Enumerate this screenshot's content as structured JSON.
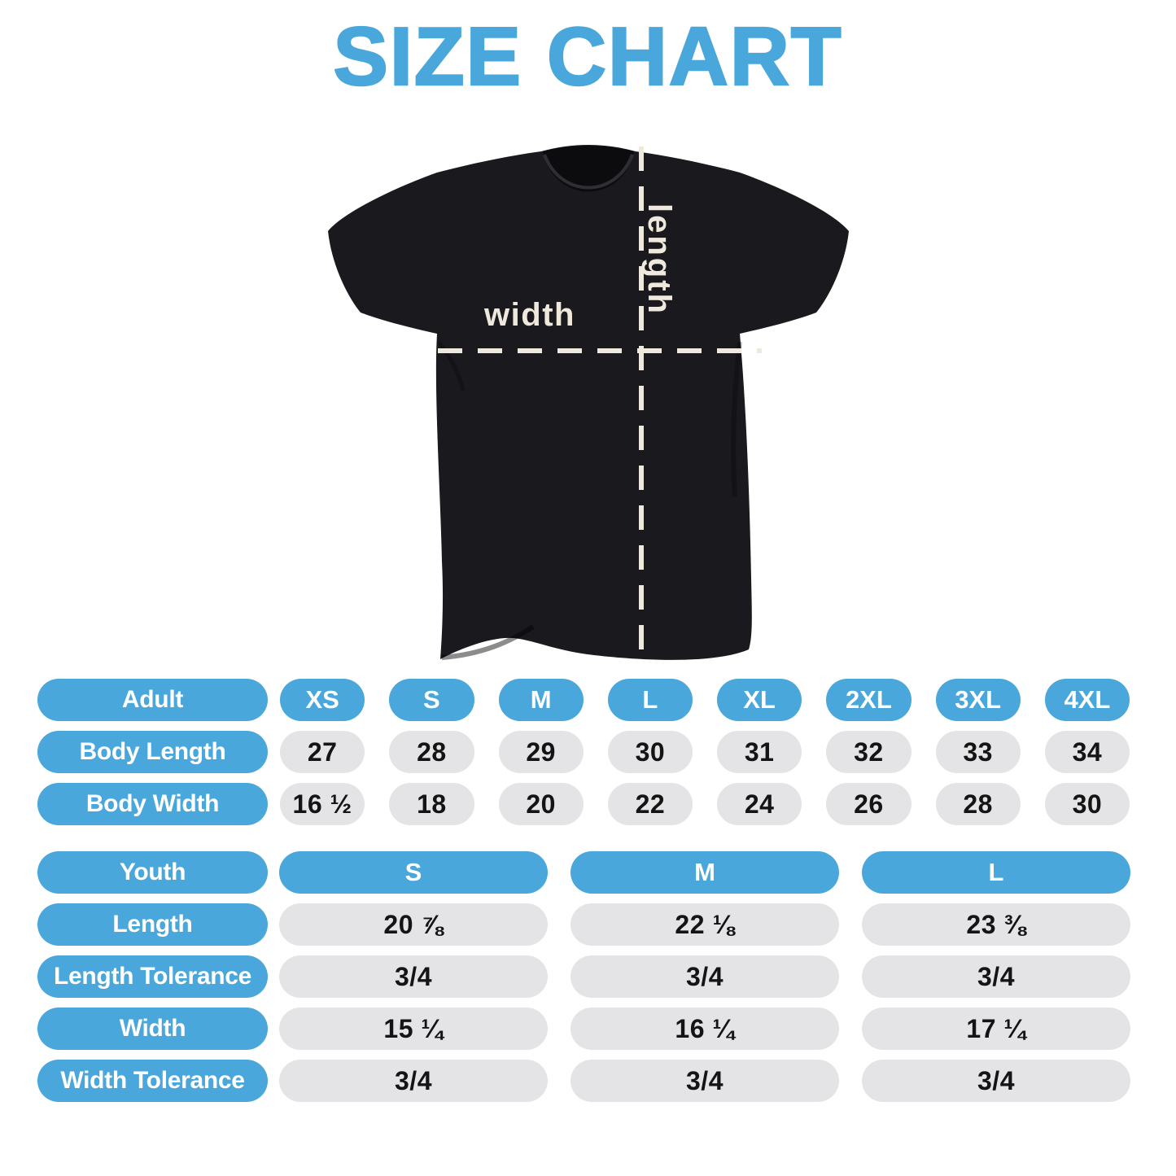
{
  "title": "SIZE CHART",
  "diagram": {
    "width_label": "width",
    "length_label": "length"
  },
  "chart_data": [
    {
      "type": "table",
      "name": "adult",
      "header": {
        "label": "Adult",
        "columns": [
          "XS",
          "S",
          "M",
          "L",
          "XL",
          "2XL",
          "3XL",
          "4XL"
        ]
      },
      "rows": [
        {
          "label": "Body Length",
          "values": [
            "27",
            "28",
            "29",
            "30",
            "31",
            "32",
            "33",
            "34"
          ]
        },
        {
          "label": "Body Width",
          "values": [
            "16 ½",
            "18",
            "20",
            "22",
            "24",
            "26",
            "28",
            "30"
          ]
        }
      ]
    },
    {
      "type": "table",
      "name": "youth",
      "header": {
        "label": "Youth",
        "columns": [
          "S",
          "M",
          "L"
        ]
      },
      "rows": [
        {
          "label": "Length",
          "values": [
            "20 ⅞",
            "22 ⅛",
            "23 ⅜"
          ]
        },
        {
          "label": "Length Tolerance",
          "values": [
            "3/4",
            "3/4",
            "3/4"
          ]
        },
        {
          "label": "Width",
          "values": [
            "15 ¼",
            "16 ¼",
            "17 ¼"
          ]
        },
        {
          "label": "Width Tolerance",
          "values": [
            "3/4",
            "3/4",
            "3/4"
          ]
        }
      ]
    }
  ],
  "colors": {
    "accent_blue": "#49A7DB",
    "pill_gray": "#E4E4E6",
    "shirt_black": "#1A191D",
    "measure_cream": "#EFE8DC"
  }
}
